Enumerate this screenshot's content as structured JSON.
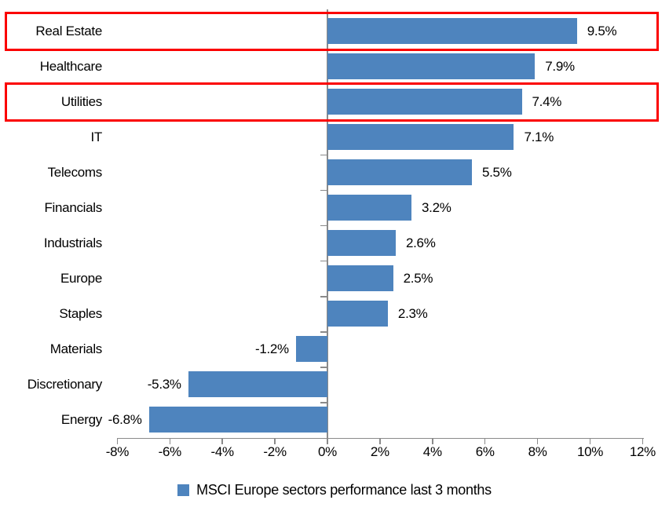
{
  "chart_data": {
    "type": "bar",
    "orientation": "horizontal",
    "categories": [
      "Real Estate",
      "Healthcare",
      "Utilities",
      "IT",
      "Telecoms",
      "Financials",
      "Industrials",
      "Europe",
      "Staples",
      "Materials",
      "Discretionary",
      "Energy"
    ],
    "values": [
      9.5,
      7.9,
      7.4,
      7.1,
      5.5,
      3.2,
      2.6,
      2.5,
      2.3,
      -1.2,
      -5.3,
      -6.8
    ],
    "value_labels": [
      "9.5%",
      "7.9%",
      "7.4%",
      "7.1%",
      "5.5%",
      "3.2%",
      "2.6%",
      "2.5%",
      "2.3%",
      "-1.2%",
      "-5.3%",
      "-6.8%"
    ],
    "x_tick_labels": [
      "-8%",
      "-6%",
      "-4%",
      "-2%",
      "0%",
      "2%",
      "4%",
      "6%",
      "8%",
      "10%",
      "12%"
    ],
    "x_tick_values": [
      -8,
      -6,
      -4,
      -2,
      0,
      2,
      4,
      6,
      8,
      10,
      12
    ],
    "xlim": [
      -8,
      12
    ],
    "title": "",
    "xlabel": "",
    "ylabel": "",
    "grid": false,
    "legend": "MSCI Europe sectors performance last 3 months",
    "legend_position": "bottom-center",
    "bar_color": "#4e84be",
    "axis_color": "#8a8a8a",
    "text_color": "#000000",
    "highlight_color": "#fb0000",
    "highlighted_categories": [
      "Real Estate",
      "Utilities"
    ]
  }
}
